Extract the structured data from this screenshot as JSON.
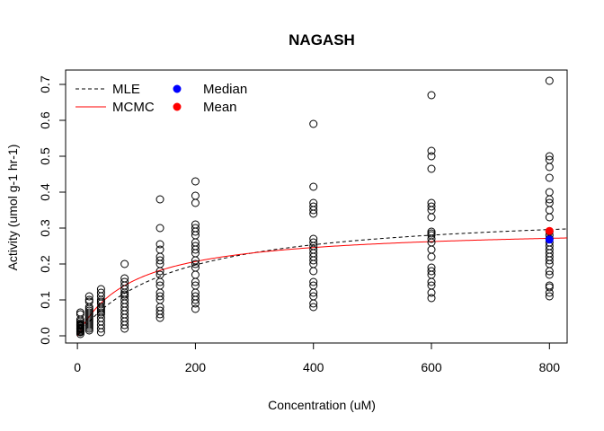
{
  "chart_data": {
    "type": "scatter",
    "title": "NAGASH",
    "xlabel": "Concentration (uM)",
    "ylabel": "Activity (umol g-1 hr-1)",
    "xlim": [
      -20,
      830
    ],
    "ylim": [
      -0.02,
      0.74
    ],
    "xticks": [
      0,
      200,
      400,
      600,
      800
    ],
    "yticks": [
      0.0,
      0.1,
      0.2,
      0.3,
      0.4,
      0.5,
      0.6,
      0.7
    ],
    "xtick_labels": [
      "0",
      "200",
      "400",
      "600",
      "800"
    ],
    "ytick_labels": [
      "0.0",
      "0.1",
      "0.2",
      "0.3",
      "0.4",
      "0.5",
      "0.6",
      "0.7"
    ],
    "grid": false,
    "legend_position": "top-left",
    "legend": [
      {
        "label": "MLE",
        "kind": "line",
        "style": "dashed",
        "color": "#000000"
      },
      {
        "label": "MCMC",
        "kind": "line",
        "style": "solid",
        "color": "#ff0000"
      },
      {
        "label": "Median",
        "kind": "point",
        "color": "#0000ff"
      },
      {
        "label": "Mean",
        "kind": "point",
        "color": "#ff0000"
      }
    ],
    "observations": [
      {
        "x": 5,
        "y": [
          0.005,
          0.01,
          0.012,
          0.015,
          0.018,
          0.02,
          0.022,
          0.025,
          0.028,
          0.03,
          0.032,
          0.035,
          0.04,
          0.045,
          0.06,
          0.065
        ]
      },
      {
        "x": 20,
        "y": [
          0.015,
          0.02,
          0.025,
          0.03,
          0.035,
          0.04,
          0.045,
          0.05,
          0.055,
          0.06,
          0.065,
          0.07,
          0.075,
          0.08,
          0.095,
          0.1,
          0.11
        ]
      },
      {
        "x": 40,
        "y": [
          0.01,
          0.02,
          0.03,
          0.04,
          0.05,
          0.06,
          0.065,
          0.07,
          0.075,
          0.08,
          0.09,
          0.095,
          0.1,
          0.11,
          0.12,
          0.13
        ]
      },
      {
        "x": 80,
        "y": [
          0.02,
          0.03,
          0.04,
          0.05,
          0.06,
          0.07,
          0.08,
          0.09,
          0.1,
          0.11,
          0.115,
          0.12,
          0.13,
          0.14,
          0.15,
          0.16,
          0.2
        ]
      },
      {
        "x": 140,
        "y": [
          0.05,
          0.06,
          0.07,
          0.08,
          0.1,
          0.11,
          0.12,
          0.14,
          0.15,
          0.17,
          0.18,
          0.2,
          0.21,
          0.22,
          0.24,
          0.255,
          0.3,
          0.38
        ]
      },
      {
        "x": 200,
        "y": [
          0.075,
          0.09,
          0.1,
          0.11,
          0.12,
          0.14,
          0.15,
          0.17,
          0.19,
          0.2,
          0.21,
          0.23,
          0.24,
          0.25,
          0.26,
          0.28,
          0.29,
          0.3,
          0.31,
          0.37,
          0.39,
          0.43
        ]
      },
      {
        "x": 400,
        "y": [
          0.08,
          0.09,
          0.11,
          0.12,
          0.14,
          0.15,
          0.18,
          0.2,
          0.21,
          0.22,
          0.23,
          0.24,
          0.25,
          0.26,
          0.27,
          0.34,
          0.35,
          0.36,
          0.37,
          0.415,
          0.59
        ]
      },
      {
        "x": 600,
        "y": [
          0.105,
          0.12,
          0.14,
          0.15,
          0.17,
          0.18,
          0.19,
          0.22,
          0.24,
          0.26,
          0.27,
          0.28,
          0.285,
          0.29,
          0.33,
          0.35,
          0.36,
          0.37,
          0.465,
          0.5,
          0.515,
          0.67
        ]
      },
      {
        "x": 800,
        "y": [
          0.11,
          0.12,
          0.135,
          0.14,
          0.17,
          0.18,
          0.2,
          0.21,
          0.22,
          0.23,
          0.24,
          0.25,
          0.26,
          0.27,
          0.28,
          0.29,
          0.33,
          0.35,
          0.37,
          0.38,
          0.4,
          0.44,
          0.47,
          0.49,
          0.5,
          0.71
        ]
      }
    ],
    "curves": [
      {
        "label": "MLE",
        "style": "dashed",
        "color": "#000000",
        "model": "michaelis-menten",
        "vmax": 0.355,
        "km": 160
      },
      {
        "label": "MCMC",
        "style": "solid",
        "color": "#ff0000",
        "model": "michaelis-menten",
        "vmax": 0.303,
        "km": 93
      }
    ],
    "summary_points": [
      {
        "label": "Median",
        "x": 800,
        "y": 0.268,
        "color": "#0000ff"
      },
      {
        "label": "Mean",
        "x": 800,
        "y": 0.292,
        "color": "#ff0000"
      }
    ]
  }
}
